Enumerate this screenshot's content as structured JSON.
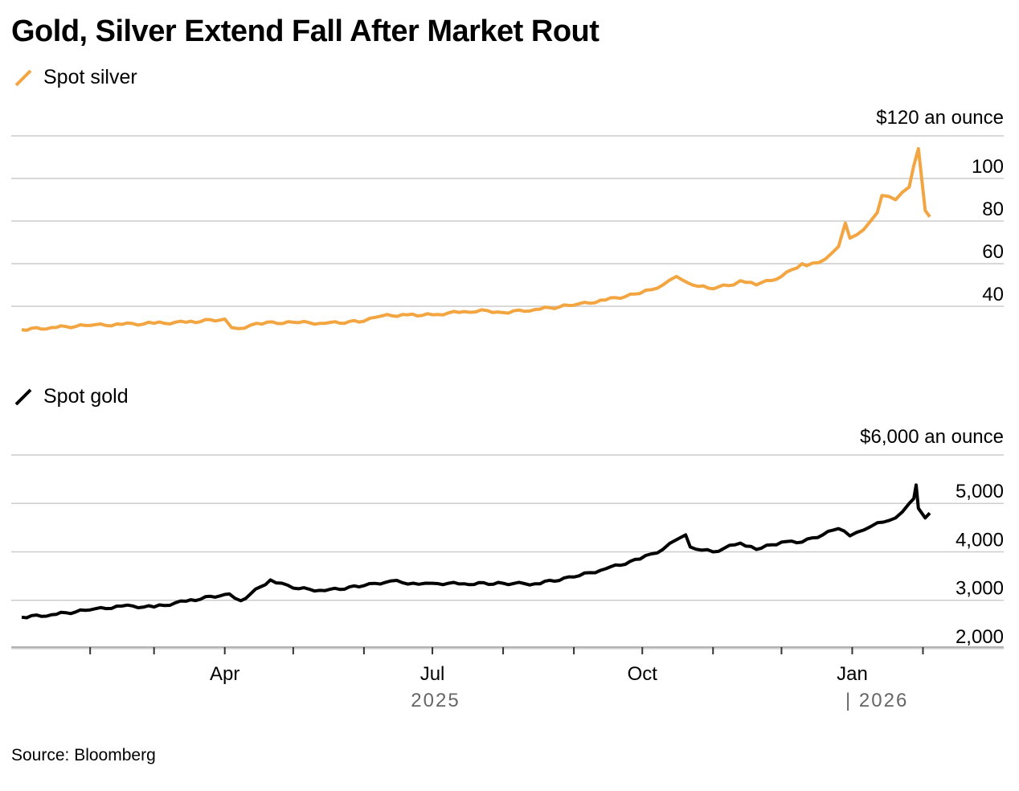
{
  "title": "Gold, Silver Extend Fall After Market Rout",
  "source": "Source: Bloomberg",
  "colors": {
    "silver": "#F2A541",
    "gold": "#000000",
    "grid": "#cccccc",
    "axis": "#999999",
    "year_label": "#666666"
  },
  "chart_data": [
    {
      "type": "line",
      "series": [
        {
          "name": "Spot silver"
        }
      ],
      "axis_title": "$120 an ounce",
      "y_ticks": [
        40,
        60,
        80,
        100
      ],
      "ylim": [
        20,
        120
      ],
      "grid": true,
      "x": [
        "2025-01-02",
        "2025-01-15",
        "2025-02-01",
        "2025-02-15",
        "2025-03-01",
        "2025-03-15",
        "2025-04-01",
        "2025-04-04",
        "2025-04-07",
        "2025-04-15",
        "2025-05-01",
        "2025-05-15",
        "2025-06-01",
        "2025-06-09",
        "2025-06-20",
        "2025-07-01",
        "2025-07-15",
        "2025-07-25",
        "2025-08-01",
        "2025-08-15",
        "2025-09-01",
        "2025-09-15",
        "2025-09-30",
        "2025-10-10",
        "2025-10-16",
        "2025-10-21",
        "2025-10-30",
        "2025-11-10",
        "2025-11-13",
        "2025-11-20",
        "2025-12-01",
        "2025-12-10",
        "2025-12-12",
        "2025-12-20",
        "2025-12-26",
        "2025-12-29",
        "2025-12-31",
        "2026-01-06",
        "2026-01-12",
        "2026-01-14",
        "2026-01-20",
        "2026-01-26",
        "2026-01-28",
        "2026-01-30",
        "2026-02-02",
        "2026-02-04"
      ],
      "values": [
        29,
        30,
        31,
        31.5,
        32,
        32.5,
        34,
        30,
        29.5,
        32,
        32.5,
        32,
        33,
        35.5,
        36,
        36,
        37.5,
        38,
        37,
        38.5,
        40.5,
        43,
        46,
        50,
        54,
        51,
        48.5,
        50,
        52,
        50,
        54,
        60,
        59,
        62,
        68,
        79,
        72,
        76,
        84,
        92,
        90,
        96,
        106,
        114,
        85,
        82
      ],
      "x_labels": [
        "Apr",
        "Jul",
        "Oct",
        "Jan"
      ],
      "year_labels": [
        "2025",
        "| 2026"
      ]
    },
    {
      "type": "line",
      "series": [
        {
          "name": "Spot gold"
        }
      ],
      "axis_title": "$6,000 an ounce",
      "y_ticks": [
        "5,000",
        "4,000",
        "3,000",
        "2,000"
      ],
      "ylim": [
        1700,
        6000
      ],
      "grid": true,
      "x": [
        "2025-01-02",
        "2025-01-15",
        "2025-02-01",
        "2025-02-15",
        "2025-03-01",
        "2025-03-15",
        "2025-04-01",
        "2025-04-03",
        "2025-04-08",
        "2025-04-21",
        "2025-05-01",
        "2025-05-15",
        "2025-06-01",
        "2025-06-13",
        "2025-06-25",
        "2025-07-01",
        "2025-07-15",
        "2025-08-01",
        "2025-08-15",
        "2025-09-01",
        "2025-09-15",
        "2025-09-30",
        "2025-10-10",
        "2025-10-16",
        "2025-10-20",
        "2025-10-22",
        "2025-11-01",
        "2025-11-13",
        "2025-11-20",
        "2025-12-01",
        "2025-12-10",
        "2025-12-26",
        "2025-12-31",
        "2026-01-06",
        "2026-01-12",
        "2026-01-20",
        "2026-01-26",
        "2026-01-28",
        "2026-01-29",
        "2026-01-30",
        "2026-02-02",
        "2026-02-04"
      ],
      "values": [
        2650,
        2700,
        2800,
        2880,
        2860,
        2980,
        3120,
        3130,
        2990,
        3420,
        3250,
        3200,
        3300,
        3400,
        3330,
        3350,
        3340,
        3350,
        3340,
        3480,
        3650,
        3850,
        4050,
        4250,
        4350,
        4100,
        4000,
        4180,
        4050,
        4200,
        4200,
        4480,
        4330,
        4450,
        4600,
        4700,
        5000,
        5100,
        5380,
        4900,
        4700,
        4800
      ],
      "x_labels": [
        "Apr",
        "Jul",
        "Oct",
        "Jan"
      ],
      "year_labels": [
        "2025",
        "| 2026"
      ]
    }
  ]
}
